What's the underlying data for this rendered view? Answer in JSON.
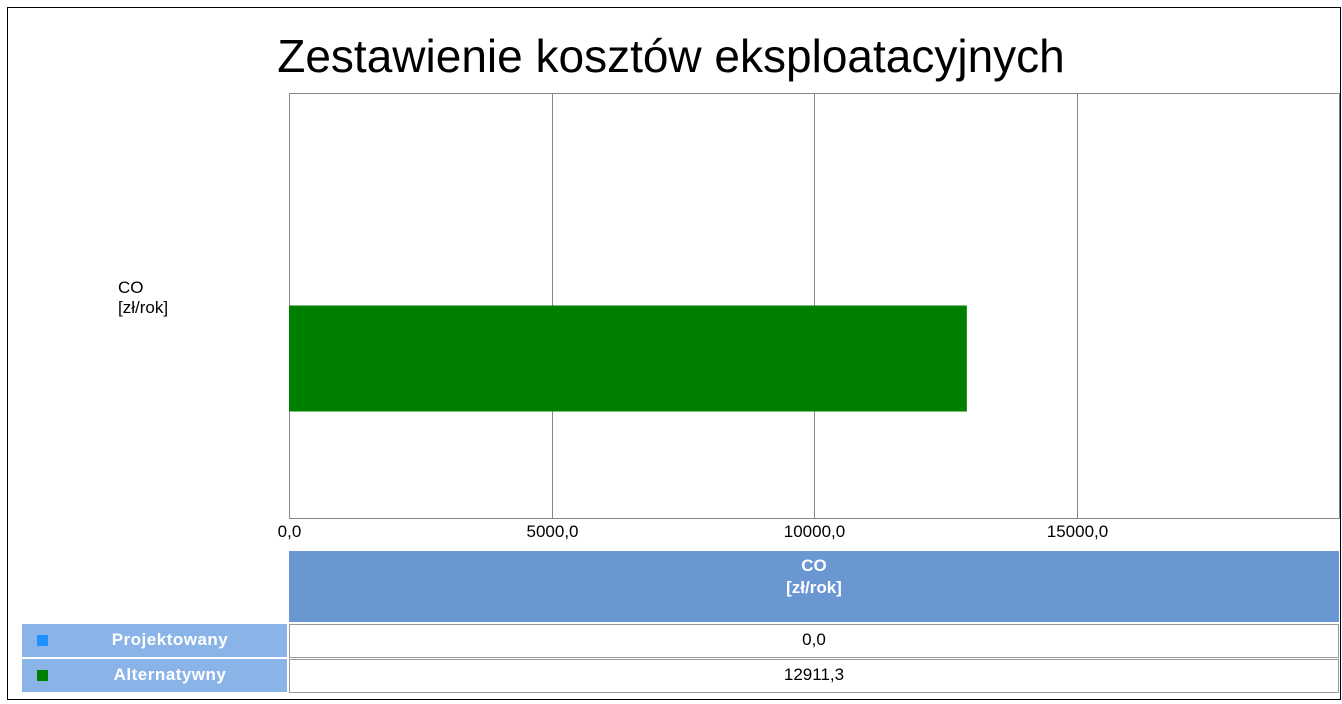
{
  "chart_data": {
    "type": "bar",
    "orientation": "horizontal",
    "title": "Zestawienie kosztów eksploatacyjnych",
    "categories": [
      "CO\n[zł/rok]"
    ],
    "series": [
      {
        "name": "Projektowany",
        "color": "#1e90ff",
        "values": [
          0
        ],
        "value_labels": [
          "0,0"
        ]
      },
      {
        "name": "Alternatywny",
        "color": "#008000",
        "values": [
          12911.3
        ],
        "value_labels": [
          "12911,3"
        ]
      }
    ],
    "xlim": [
      0,
      20000
    ],
    "xticks": [
      {
        "value": 0,
        "label": "0,0"
      },
      {
        "value": 5000,
        "label": "5000,0"
      },
      {
        "value": 10000,
        "label": "10000,0"
      },
      {
        "value": 15000,
        "label": "15000,0"
      }
    ],
    "grid": true
  }
}
